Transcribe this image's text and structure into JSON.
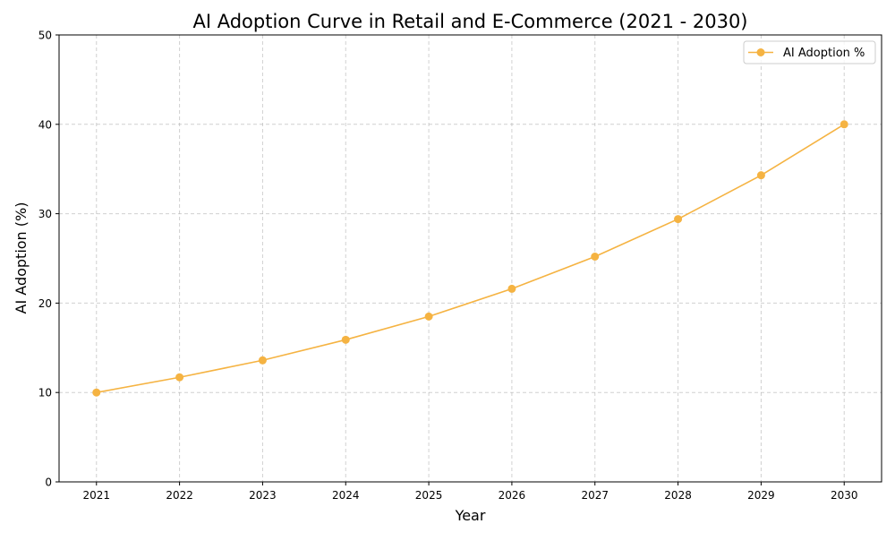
{
  "chart_data": {
    "type": "line",
    "title": "AI Adoption Curve in Retail and E-Commerce (2021 - 2030)",
    "xlabel": "Year",
    "ylabel": "AI Adoption (%)",
    "x": [
      2021,
      2022,
      2023,
      2024,
      2025,
      2026,
      2027,
      2028,
      2029,
      2030
    ],
    "series": [
      {
        "name": "AI Adoption %",
        "color": "#f5b342",
        "marker": "circle",
        "values": [
          10.0,
          11.7,
          13.6,
          15.9,
          18.5,
          21.6,
          25.2,
          29.4,
          34.3,
          40.0
        ]
      }
    ],
    "xticks": [
      "2021",
      "2022",
      "2023",
      "2024",
      "2025",
      "2026",
      "2027",
      "2028",
      "2029",
      "2030"
    ],
    "yticks": [
      "0",
      "10",
      "20",
      "30",
      "40",
      "50"
    ],
    "xlim": [
      2020.55,
      2030.45
    ],
    "ylim": [
      0,
      50
    ],
    "grid": true,
    "grid_style": "dashed",
    "legend_position": "top-right"
  }
}
